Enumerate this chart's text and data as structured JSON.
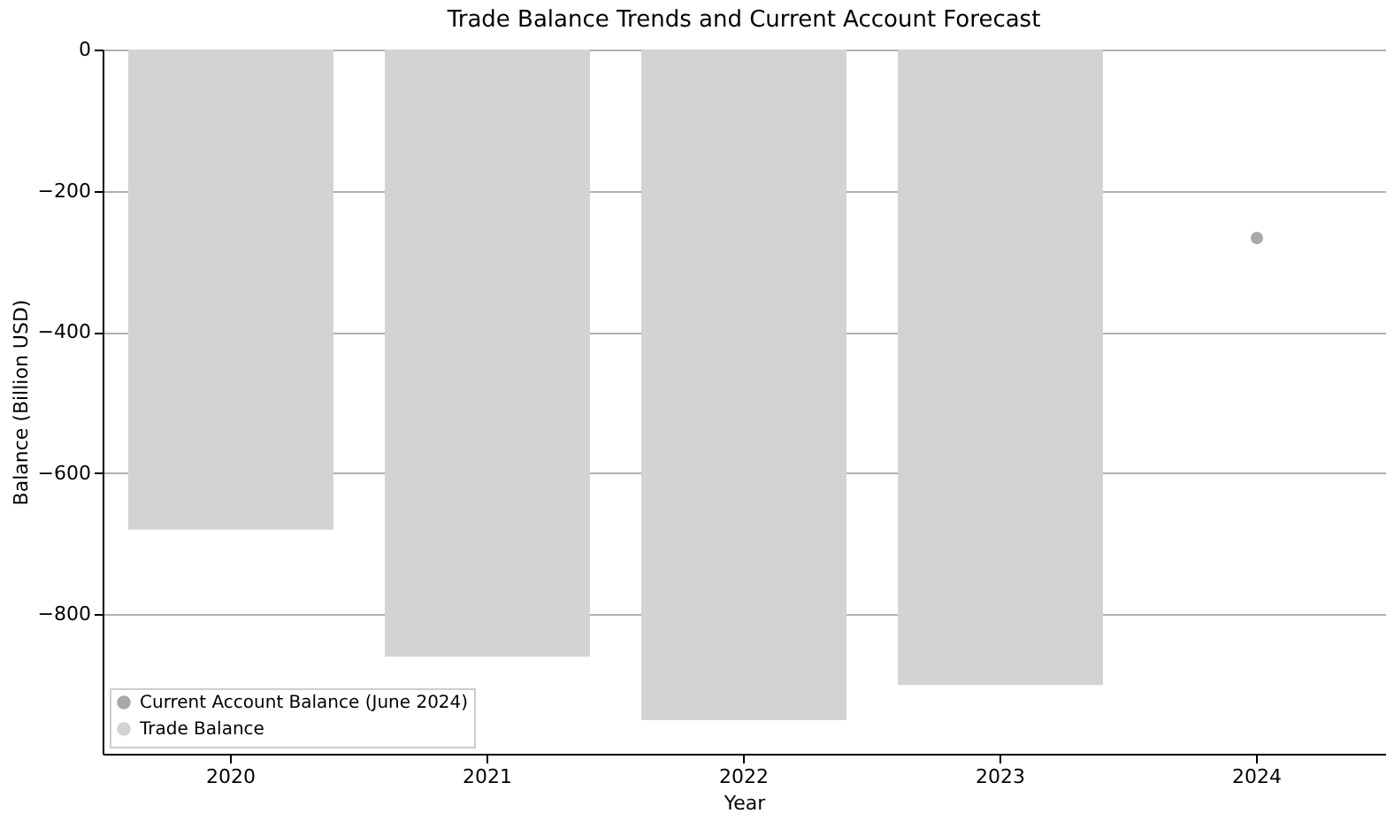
{
  "chart_data": {
    "type": "bar",
    "title": "Trade Balance Trends and Current Account Forecast",
    "xlabel": "Year",
    "ylabel": "Balance (Billion USD)",
    "categories": [
      "2020",
      "2021",
      "2022",
      "2023",
      "2024"
    ],
    "series": [
      {
        "name": "Current Account Balance (June 2024)",
        "type": "line",
        "color": "#a9a9a9",
        "marker": "circle",
        "values": [
          null,
          null,
          null,
          null,
          -267
        ]
      },
      {
        "name": "Trade Balance",
        "color": "#d3d3d3",
        "values": [
          -680,
          -860,
          -950,
          -900,
          null
        ]
      }
    ],
    "ylim": [
      -997.5,
      0
    ],
    "yticks": [
      -800,
      -600,
      -400,
      -200,
      0
    ],
    "grid": "y",
    "legend": "bottom left"
  }
}
